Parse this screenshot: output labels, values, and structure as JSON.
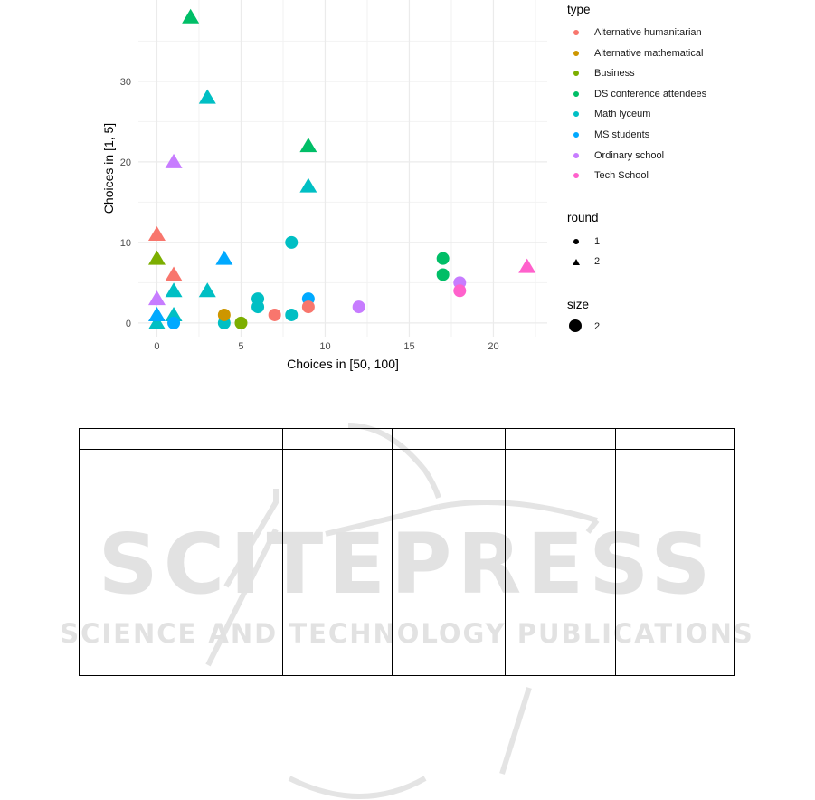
{
  "chart_data": {
    "type": "scatter",
    "xlabel": "Choices in [50, 100]",
    "ylabel": "Choices in [1, 5]",
    "xlim": [
      -1.1,
      23.2
    ],
    "ylim": [
      -1.7,
      40.1
    ],
    "x_ticks": [
      0,
      5,
      10,
      15,
      20
    ],
    "y_ticks": [
      0,
      10,
      20,
      30
    ],
    "grid": true,
    "legend_placement": "right",
    "legend": {
      "type_title": "type",
      "types": [
        {
          "name": "Alternative humanitarian",
          "color": "#F8766D"
        },
        {
          "name": "Alternative mathematical",
          "color": "#CD9600"
        },
        {
          "name": "Business",
          "color": "#7CAE00"
        },
        {
          "name": "DS conference attendees",
          "color": "#00BE67"
        },
        {
          "name": "Math lyceum",
          "color": "#00BFC4"
        },
        {
          "name": "MS students",
          "color": "#00A9FF"
        },
        {
          "name": "Ordinary school",
          "color": "#C77CFF"
        },
        {
          "name": "Tech School",
          "color": "#FF61CC"
        }
      ],
      "round_title": "round",
      "rounds": [
        {
          "label": "1",
          "shape": "circle"
        },
        {
          "label": "2",
          "shape": "triangle"
        }
      ],
      "size_title": "size",
      "size_label": "2"
    },
    "points": [
      {
        "type": "DS conference attendees",
        "round": 2,
        "x": 2,
        "y": 38
      },
      {
        "type": "DS conference attendees",
        "round": 2,
        "x": 9,
        "y": 22
      },
      {
        "type": "Math lyceum",
        "round": 2,
        "x": 3,
        "y": 28
      },
      {
        "type": "Math lyceum",
        "round": 2,
        "x": 9,
        "y": 17
      },
      {
        "type": "Math lyceum",
        "round": 2,
        "x": 1,
        "y": 4
      },
      {
        "type": "Math lyceum",
        "round": 2,
        "x": 3,
        "y": 4
      },
      {
        "type": "Math lyceum",
        "round": 2,
        "x": 1,
        "y": 1
      },
      {
        "type": "Math lyceum",
        "round": 2,
        "x": 0,
        "y": 0
      },
      {
        "type": "Ordinary school",
        "round": 2,
        "x": 1,
        "y": 20
      },
      {
        "type": "Ordinary school",
        "round": 2,
        "x": 0,
        "y": 3
      },
      {
        "type": "Alternative humanitarian",
        "round": 2,
        "x": 0,
        "y": 11
      },
      {
        "type": "Alternative humanitarian",
        "round": 2,
        "x": 1,
        "y": 6
      },
      {
        "type": "Business",
        "round": 2,
        "x": 0,
        "y": 8
      },
      {
        "type": "MS students",
        "round": 2,
        "x": 4,
        "y": 8
      },
      {
        "type": "MS students",
        "round": 2,
        "x": 0,
        "y": 1
      },
      {
        "type": "Tech School",
        "round": 2,
        "x": 22,
        "y": 7
      },
      {
        "type": "Math lyceum",
        "round": 1,
        "x": 8,
        "y": 10
      },
      {
        "type": "Math lyceum",
        "round": 1,
        "x": 6,
        "y": 3
      },
      {
        "type": "Math lyceum",
        "round": 1,
        "x": 6,
        "y": 2
      },
      {
        "type": "Math lyceum",
        "round": 1,
        "x": 8,
        "y": 1
      },
      {
        "type": "Math lyceum",
        "round": 1,
        "x": 4,
        "y": 0
      },
      {
        "type": "MS students",
        "round": 1,
        "x": 9,
        "y": 3
      },
      {
        "type": "MS students",
        "round": 1,
        "x": 1,
        "y": 0
      },
      {
        "type": "Alternative humanitarian",
        "round": 1,
        "x": 9,
        "y": 2
      },
      {
        "type": "Alternative humanitarian",
        "round": 1,
        "x": 7,
        "y": 1
      },
      {
        "type": "Alternative mathematical",
        "round": 1,
        "x": 4,
        "y": 1
      },
      {
        "type": "Business",
        "round": 1,
        "x": 5,
        "y": 0
      },
      {
        "type": "Ordinary school",
        "round": 1,
        "x": 12,
        "y": 2
      },
      {
        "type": "Ordinary school",
        "round": 1,
        "x": 18,
        "y": 5
      },
      {
        "type": "DS conference attendees",
        "round": 1,
        "x": 17,
        "y": 8
      },
      {
        "type": "DS conference attendees",
        "round": 1,
        "x": 17,
        "y": 6
      },
      {
        "type": "Tech School",
        "round": 1,
        "x": 18,
        "y": 4
      }
    ]
  },
  "watermark": {
    "title": "SCITEPRESS",
    "subtitle": "SCIENCE AND TECHNOLOGY PUBLICATIONS"
  }
}
